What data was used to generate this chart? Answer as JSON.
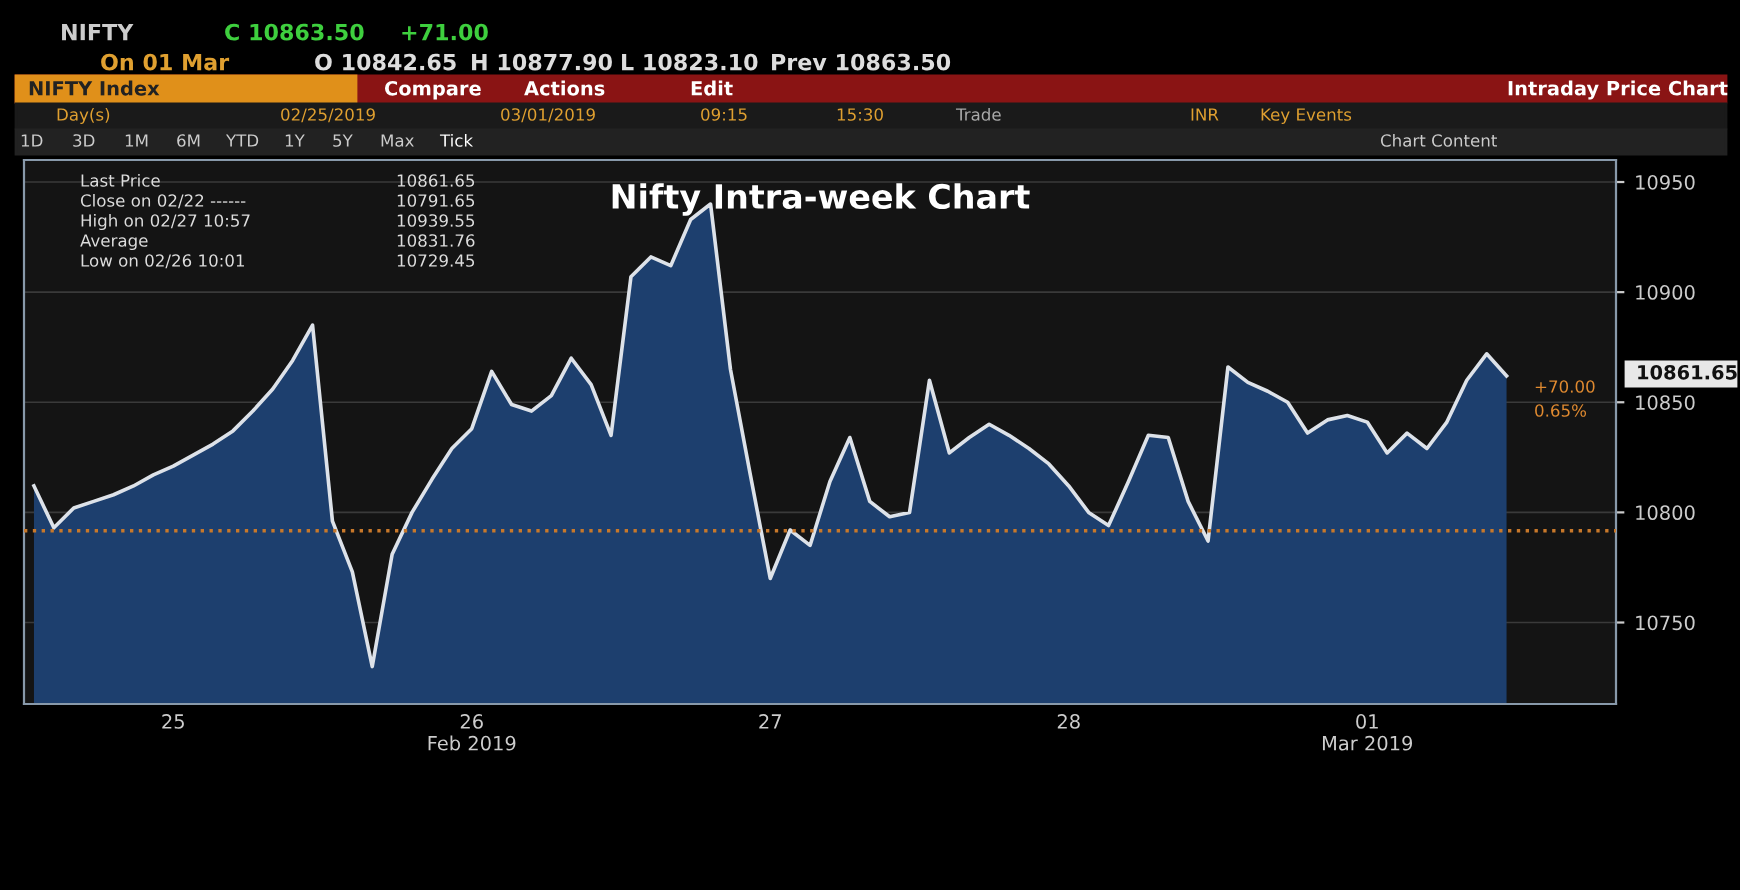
{
  "chart_data": {
    "type": "area",
    "title": "Nifty Intra-week Chart",
    "categories": [
      null,
      null,
      null,
      null,
      null,
      null,
      null,
      "25",
      null,
      null,
      null,
      null,
      null,
      null,
      null,
      null,
      null,
      null,
      null,
      null,
      null,
      null,
      "26\nFeb 2019",
      null,
      null,
      null,
      null,
      null,
      null,
      null,
      null,
      null,
      null,
      null,
      null,
      null,
      null,
      "27",
      null,
      null,
      null,
      null,
      null,
      null,
      null,
      null,
      null,
      null,
      null,
      null,
      null,
      null,
      "28",
      null,
      null,
      null,
      null,
      null,
      null,
      null,
      null,
      null,
      null,
      null,
      null,
      null,
      null,
      "01\nMar 2019",
      null,
      null,
      null,
      null,
      null,
      null,
      null,
      null,
      null,
      null,
      null,
      null
    ],
    "series": [
      {
        "color": "#1d3f6e",
        "values": [
          10812,
          10793,
          10802,
          10805,
          10808,
          10812,
          10817,
          10821,
          10826,
          10831,
          10837,
          10846,
          10856,
          10869,
          10885,
          10796,
          10773,
          10730,
          10781,
          10800,
          10815,
          10829,
          10838,
          10864,
          10849,
          10846,
          10853,
          10870,
          10858,
          10835,
          10907,
          10916,
          10912,
          10933,
          10940,
          10865,
          10817,
          10770,
          10792,
          10785,
          10814,
          10834,
          10805,
          10798,
          10800,
          10860,
          10827,
          10834,
          10840,
          10835,
          10829,
          10822,
          10812,
          10800,
          10794,
          10814,
          10835,
          10834,
          10805,
          10787,
          10866,
          10859,
          10855,
          10850,
          10836,
          10842,
          10844,
          10841,
          10827,
          10836,
          10829,
          10841,
          10860,
          10872,
          10862,
          null,
          null,
          null,
          null,
          null
        ]
      }
    ],
    "ylim": [
      10713,
      10960
    ],
    "yticks": [
      10750,
      10800,
      10850,
      10900,
      10950
    ],
    "grid": "y",
    "ref_lines": [
      {
        "axis": "y",
        "value": 10791.65,
        "color": "#c8782a",
        "line_style": "dotted"
      }
    ],
    "annotations": [
      "NIFTY",
      "C 10863.50",
      "+71.00",
      "On 01 Mar",
      "O 10842.65",
      "H 10877.90",
      "L 10823.10",
      "Prev 10863.50",
      "NIFTY Index",
      "Compare",
      "Actions",
      "Edit",
      "Intraday Price Chart",
      "Day(s)",
      "02/25/2019",
      "03/01/2019",
      "09:15",
      "15:30",
      "Trade",
      "INR",
      "Key Events",
      "1D",
      "3D",
      "1M",
      "6M",
      "YTD",
      "1Y",
      "5Y",
      "Max",
      "Tick",
      "Chart Content",
      "Last Price",
      "10861.65",
      "Close on 02/22 ------",
      "10791.65",
      "High on 02/27 10:57",
      "10939.55",
      "Average",
      "10831.76",
      "Low on 02/26 10:01",
      "10729.45",
      "10861.65",
      "+70.00",
      "0.65%"
    ]
  }
}
